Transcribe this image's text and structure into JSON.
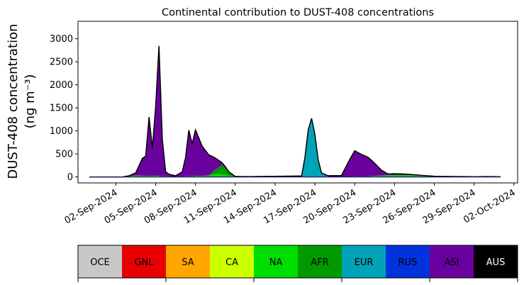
{
  "chart_data": {
    "type": "area",
    "title": "Continental contribution to DUST-408 concentrations",
    "ylabel_line1": "DUST-408 concentration",
    "ylabel_line2": "(ng m⁻³)",
    "xlabel": "",
    "x_start": "2024-08-31",
    "x_end": "2024-10-01",
    "ylim": [
      -130,
      3380
    ],
    "y_ticks": [
      "0",
      "500",
      "1000",
      "1500",
      "2000",
      "2500",
      "3000"
    ],
    "x_ticks": [
      "02-Sep-2024",
      "05-Sep-2024",
      "08-Sep-2024",
      "11-Sep-2024",
      "14-Sep-2024",
      "17-Sep-2024",
      "20-Sep-2024",
      "23-Sep-2024",
      "26-Sep-2024",
      "29-Sep-2024",
      "02-Oct-2024"
    ],
    "grid": false,
    "legend_placement": "bottom color bar",
    "series": [
      {
        "name": "NA",
        "color": "#00dd00",
        "points": [
          [
            "2024-08-31T00:00",
            0
          ],
          [
            "2024-09-02T12:00",
            0
          ],
          [
            "2024-09-03T00:00",
            15
          ],
          [
            "2024-09-03T12:00",
            30
          ],
          [
            "2024-09-04T00:00",
            25
          ],
          [
            "2024-09-04T12:00",
            20
          ],
          [
            "2024-09-05T00:00",
            25
          ],
          [
            "2024-09-05T12:00",
            15
          ],
          [
            "2024-09-06T00:00",
            10
          ],
          [
            "2024-09-06T12:00",
            5
          ],
          [
            "2024-09-07T00:00",
            10
          ],
          [
            "2024-09-07T12:00",
            15
          ],
          [
            "2024-09-08T00:00",
            20
          ],
          [
            "2024-09-08T12:00",
            20
          ],
          [
            "2024-09-09T00:00",
            30
          ],
          [
            "2024-09-09T12:00",
            60
          ],
          [
            "2024-09-10T00:00",
            60
          ],
          [
            "2024-09-10T12:00",
            25
          ],
          [
            "2024-09-11T00:00",
            10
          ],
          [
            "2024-09-12T00:00",
            5
          ],
          [
            "2024-09-21T00:00",
            10
          ],
          [
            "2024-09-22T00:00",
            30
          ],
          [
            "2024-09-23T00:00",
            40
          ],
          [
            "2024-09-24T00:00",
            40
          ],
          [
            "2024-09-25T00:00",
            25
          ],
          [
            "2024-09-26T00:00",
            15
          ],
          [
            "2024-09-27T00:00",
            10
          ],
          [
            "2024-09-28T00:00",
            8
          ],
          [
            "2024-09-29T00:00",
            5
          ],
          [
            "2024-09-30T00:00",
            8
          ],
          [
            "2024-10-01T00:00",
            5
          ]
        ]
      },
      {
        "name": "AFR",
        "color": "#009900",
        "points": [
          [
            "2024-08-31T00:00",
            0
          ],
          [
            "2024-09-09T00:00",
            0
          ],
          [
            "2024-09-09T12:00",
            100
          ],
          [
            "2024-09-10T00:00",
            200
          ],
          [
            "2024-09-10T06:00",
            150
          ],
          [
            "2024-09-10T12:00",
            80
          ],
          [
            "2024-09-11T00:00",
            0
          ],
          [
            "2024-10-01T00:00",
            0
          ]
        ]
      },
      {
        "name": "EUR",
        "color": "#00a3b8",
        "points": [
          [
            "2024-08-31T00:00",
            0
          ],
          [
            "2024-09-16T00:00",
            0
          ],
          [
            "2024-09-16T06:00",
            400
          ],
          [
            "2024-09-16T12:00",
            1000
          ],
          [
            "2024-09-16T18:00",
            1250
          ],
          [
            "2024-09-17T00:00",
            900
          ],
          [
            "2024-09-17T06:00",
            350
          ],
          [
            "2024-09-17T12:00",
            60
          ],
          [
            "2024-09-18T00:00",
            0
          ],
          [
            "2024-10-01T00:00",
            0
          ]
        ]
      },
      {
        "name": "ASI",
        "color": "#6a009e",
        "points": [
          [
            "2024-08-31T00:00",
            0
          ],
          [
            "2024-09-02T12:00",
            0
          ],
          [
            "2024-09-03T00:00",
            10
          ],
          [
            "2024-09-03T12:00",
            60
          ],
          [
            "2024-09-04T00:00",
            380
          ],
          [
            "2024-09-04T06:00",
            430
          ],
          [
            "2024-09-04T12:00",
            1280
          ],
          [
            "2024-09-04T18:00",
            600
          ],
          [
            "2024-09-05T00:00",
            1500
          ],
          [
            "2024-09-05T04:00",
            3150
          ],
          [
            "2024-09-05T08:00",
            2500
          ],
          [
            "2024-09-05T12:00",
            800
          ],
          [
            "2024-09-05T18:00",
            100
          ],
          [
            "2024-09-06T00:00",
            50
          ],
          [
            "2024-09-06T12:00",
            20
          ],
          [
            "2024-09-07T00:00",
            100
          ],
          [
            "2024-09-07T06:00",
            400
          ],
          [
            "2024-09-07T12:00",
            1000
          ],
          [
            "2024-09-07T18:00",
            700
          ],
          [
            "2024-09-08T00:00",
            1000
          ],
          [
            "2024-09-08T12:00",
            650
          ],
          [
            "2024-09-09T00:00",
            450
          ],
          [
            "2024-09-09T12:00",
            250
          ],
          [
            "2024-09-10T00:00",
            50
          ],
          [
            "2024-09-10T12:00",
            10
          ],
          [
            "2024-09-11T00:00",
            0
          ],
          [
            "2024-09-19T00:00",
            20
          ],
          [
            "2024-09-19T12:00",
            300
          ],
          [
            "2024-09-20T00:00",
            560
          ],
          [
            "2024-09-20T12:00",
            480
          ],
          [
            "2024-09-21T00:00",
            420
          ],
          [
            "2024-09-21T12:00",
            280
          ],
          [
            "2024-09-22T00:00",
            120
          ],
          [
            "2024-09-22T12:00",
            30
          ],
          [
            "2024-09-23T00:00",
            30
          ],
          [
            "2024-09-24T00:00",
            20
          ],
          [
            "2024-09-25T00:00",
            10
          ],
          [
            "2024-09-26T00:00",
            0
          ],
          [
            "2024-10-01T00:00",
            0
          ]
        ]
      }
    ]
  },
  "legend": {
    "items": [
      {
        "label": "OCE",
        "color": "#c8c8c8",
        "text_color": "#000000"
      },
      {
        "label": "GNL",
        "color": "#e60000",
        "text_color": "#000000"
      },
      {
        "label": "SA",
        "color": "#ffa500",
        "text_color": "#000000"
      },
      {
        "label": "CA",
        "color": "#ccff00",
        "text_color": "#000000"
      },
      {
        "label": "NA",
        "color": "#00dd00",
        "text_color": "#000000"
      },
      {
        "label": "AFR",
        "color": "#009900",
        "text_color": "#000000"
      },
      {
        "label": "EUR",
        "color": "#00a3b8",
        "text_color": "#000000"
      },
      {
        "label": "RUS",
        "color": "#0033dd",
        "text_color": "#000000"
      },
      {
        "label": "ASI",
        "color": "#6a009e",
        "text_color": "#000000"
      },
      {
        "label": "AUS",
        "color": "#000000",
        "text_color": "#ffffff"
      }
    ]
  }
}
